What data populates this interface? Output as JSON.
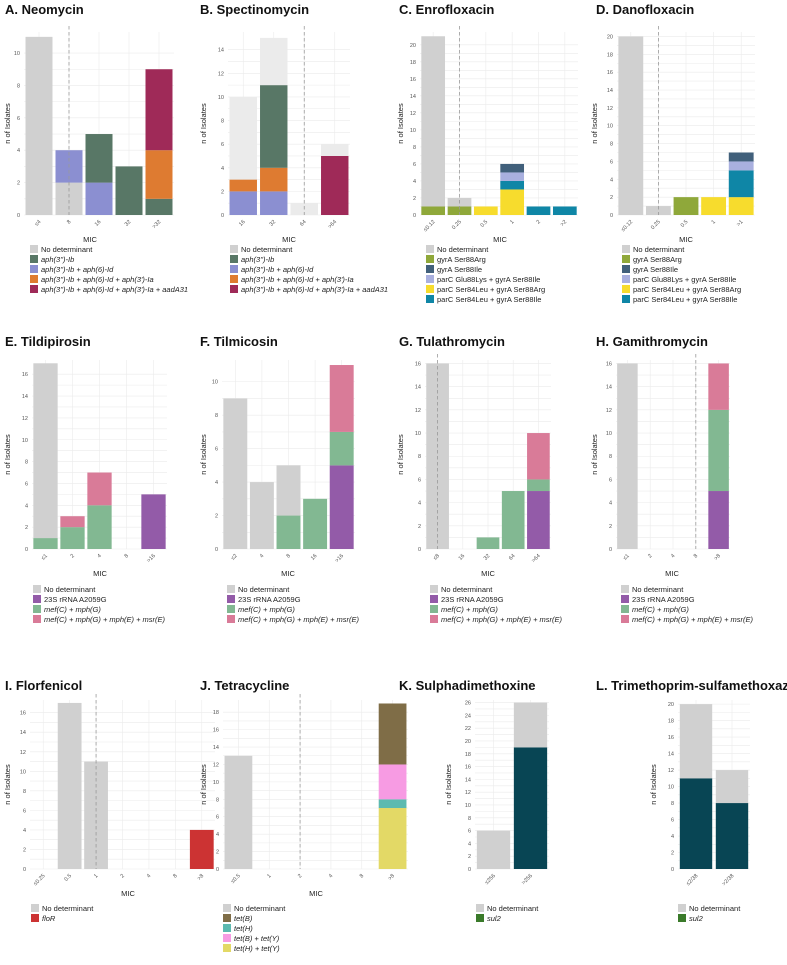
{
  "legend_sets": {
    "aph": [
      {
        "label": "No determinant",
        "color": "#d0d0d0",
        "italic": false
      },
      {
        "label": "aph(3'')-Ib",
        "color": "#587766",
        "italic": true
      },
      {
        "label": "aph(3'')-Ib + aph(6)-Id",
        "color": "#8b8fd1",
        "italic": true
      },
      {
        "label": "aph(3'')-Ib + aph(6)-Id + aph(3')-Ia",
        "color": "#de7b31",
        "italic": true
      },
      {
        "label": "aph(3'')-Ib + aph(6)-Id + aph(3')-Ia + aadA31",
        "color": "#9f2a58",
        "italic": true
      }
    ],
    "fq": [
      {
        "label": "No determinant",
        "color": "#d0d0d0",
        "italic": false
      },
      {
        "label": "gyrA Ser88Arg",
        "color": "#8fa83a",
        "italic": false
      },
      {
        "label": "gyrA Ser88Ile",
        "color": "#41607b",
        "italic": false
      },
      {
        "label": "parC Glu88Lys + gyrA Ser88Ile",
        "color": "#a9b0df",
        "italic": false
      },
      {
        "label": "parC Ser84Leu + gyrA Ser88Arg",
        "color": "#f7dc2d",
        "italic": false
      },
      {
        "label": "parC Ser84Leu + gyrA Ser88Ile",
        "color": "#0f86a6",
        "italic": false
      }
    ],
    "mac": [
      {
        "label": "No determinant",
        "color": "#d0d0d0",
        "italic": false
      },
      {
        "label": "23S rRNA A2059G",
        "color": "#935ba8",
        "italic": false
      },
      {
        "label": "mef(C) + mph(G)",
        "color": "#82b892",
        "italic": true
      },
      {
        "label": "mef(C) + mph(G) + mph(E) + msr(E)",
        "color": "#d97b98",
        "italic": true
      }
    ],
    "flo": [
      {
        "label": "No determinant",
        "color": "#d0d0d0",
        "italic": false
      },
      {
        "label": "floR",
        "color": "#cc3333",
        "italic": true
      }
    ],
    "tet": [
      {
        "label": "No determinant",
        "color": "#d0d0d0",
        "italic": false
      },
      {
        "label": "tet(B)",
        "color": "#7f6d47",
        "italic": true
      },
      {
        "label": "tet(H)",
        "color": "#5cbab0",
        "italic": true
      },
      {
        "label": "tet(B) + tet(Y)",
        "color": "#f79be3",
        "italic": true
      },
      {
        "label": "tet(H) + tet(Y)",
        "color": "#e3d966",
        "italic": true
      }
    ],
    "sul": [
      {
        "label": "No determinant",
        "color": "#d0d0d0",
        "italic": false
      },
      {
        "label": "sul2",
        "color": "#3a7a2a",
        "italic": true
      }
    ]
  },
  "chart_data": [
    {
      "type": "bar",
      "title": "A. Neomycin",
      "xlabel": "MIC",
      "ylabel": "n of Isolates",
      "ylim": [
        0,
        11.3
      ],
      "yticks": [
        0,
        2,
        4,
        6,
        8,
        10
      ],
      "categories": [
        "≤4",
        "8",
        "16",
        "32",
        ">32"
      ],
      "breakpoint": 1.5,
      "legend": "aph",
      "series": [
        {
          "name": "No determinant",
          "color": "#d0d0d0",
          "values": [
            11,
            2,
            0,
            0,
            0
          ]
        },
        {
          "name": "aph(3'')-Ib + aph(6)-Id",
          "color": "#8b8fd1",
          "values": [
            0,
            2,
            2,
            0,
            0
          ]
        },
        {
          "name": "aph(3'')-Ib",
          "color": "#587766",
          "values": [
            0,
            0,
            3,
            3,
            1
          ]
        },
        {
          "name": "aph(3'')-Ib + aph(6)-Id + aph(3')-Ia",
          "color": "#de7b31",
          "values": [
            0,
            0,
            0,
            0,
            3
          ]
        },
        {
          "name": "aph(3'')-Ib + aph(6)-Id + aph(3')-Ia + aadA31",
          "color": "#9f2a58",
          "values": [
            0,
            0,
            0,
            0,
            5
          ]
        }
      ]
    },
    {
      "type": "bar",
      "title": "B. Spectinomycin",
      "xlabel": "MIC",
      "ylabel": "n of Isolates",
      "ylim": [
        0,
        15.5
      ],
      "yticks": [
        0,
        2,
        4,
        6,
        8,
        10,
        12,
        14
      ],
      "categories": [
        "16",
        "32",
        "64",
        ">64"
      ],
      "breakpoint": 2.5,
      "legend": "aph",
      "series": [
        {
          "name": "aph(3'')-Ib + aph(6)-Id",
          "color": "#8b8fd1",
          "values": [
            2,
            2,
            0,
            0
          ]
        },
        {
          "name": "aph(3'')-Ib + aph(6)-Id + aph(3')-Ia",
          "color": "#de7b31",
          "values": [
            1,
            2,
            0,
            0
          ]
        },
        {
          "name": "aph(3'')-Ib",
          "color": "#587766",
          "values": [
            0,
            7,
            0,
            0
          ]
        },
        {
          "name": "aph(3'')-Ib + aph(6)-Id + aph(3')-Ia + aadA31",
          "color": "#9f2a58",
          "values": [
            0,
            0,
            0,
            5
          ]
        },
        {
          "name": "No determinant",
          "color": "#ebebeb",
          "values": [
            7,
            4,
            1,
            1
          ]
        }
      ]
    },
    {
      "type": "bar",
      "title": "C. Enrofloxacin",
      "xlabel": "MIC",
      "ylabel": "n of Isolates",
      "ylim": [
        0,
        21.5
      ],
      "yticks": [
        0,
        2,
        4,
        6,
        8,
        10,
        12,
        14,
        16,
        18,
        20
      ],
      "categories": [
        "≤0.12",
        "0.25",
        "0.5",
        "1",
        "2",
        ">2"
      ],
      "breakpoint": 1.5,
      "legend": "fq",
      "series": [
        {
          "name": "gyrA Ser88Arg",
          "color": "#8fa83a",
          "values": [
            1,
            1,
            0,
            0,
            0,
            0
          ]
        },
        {
          "name": "parC Ser84Leu + gyrA Ser88Arg",
          "color": "#f7dc2d",
          "values": [
            0,
            0,
            1,
            3,
            0,
            0
          ]
        },
        {
          "name": "parC Ser84Leu + gyrA Ser88Ile",
          "color": "#0f86a6",
          "values": [
            0,
            0,
            0,
            1,
            1,
            1
          ]
        },
        {
          "name": "parC Glu88Lys + gyrA Ser88Ile",
          "color": "#a9b0df",
          "values": [
            0,
            0,
            0,
            1,
            0,
            0
          ]
        },
        {
          "name": "gyrA Ser88Ile",
          "color": "#41607b",
          "values": [
            0,
            0,
            0,
            1,
            0,
            0
          ]
        },
        {
          "name": "No determinant",
          "color": "#d0d0d0",
          "values": [
            20,
            1,
            0,
            0,
            0,
            0
          ]
        }
      ]
    },
    {
      "type": "bar",
      "title": "D. Danofloxacin",
      "xlabel": "MIC",
      "ylabel": "n of Isolates",
      "ylim": [
        0,
        20.5
      ],
      "yticks": [
        0,
        2,
        4,
        6,
        8,
        10,
        12,
        14,
        16,
        18,
        20
      ],
      "categories": [
        "≤0.12",
        "0.25",
        "0.5",
        "1",
        ">1"
      ],
      "breakpoint": 1.5,
      "legend": "fq",
      "series": [
        {
          "name": "gyrA Ser88Arg",
          "color": "#8fa83a",
          "values": [
            0,
            0,
            2,
            0,
            0
          ]
        },
        {
          "name": "parC Ser84Leu + gyrA Ser88Arg",
          "color": "#f7dc2d",
          "values": [
            0,
            0,
            0,
            2,
            2
          ]
        },
        {
          "name": "parC Ser84Leu + gyrA Ser88Ile",
          "color": "#0f86a6",
          "values": [
            0,
            0,
            0,
            0,
            3
          ]
        },
        {
          "name": "parC Glu88Lys + gyrA Ser88Ile",
          "color": "#a9b0df",
          "values": [
            0,
            0,
            0,
            0,
            1
          ]
        },
        {
          "name": "gyrA Ser88Ile",
          "color": "#41607b",
          "values": [
            0,
            0,
            0,
            0,
            1
          ]
        },
        {
          "name": "No determinant",
          "color": "#d0d0d0",
          "values": [
            20,
            1,
            0,
            0,
            0
          ]
        }
      ]
    },
    {
      "type": "bar",
      "title": "E. Tildipirosin",
      "xlabel": "MIC",
      "ylabel": "n of Isolates",
      "ylim": [
        0,
        17.3
      ],
      "yticks": [
        0,
        2,
        4,
        6,
        8,
        10,
        12,
        14,
        16
      ],
      "categories": [
        "≤1",
        "2",
        "4",
        "8",
        ">16"
      ],
      "breakpoint": null,
      "legend": "mac",
      "series": [
        {
          "name": "mef(C) + mph(G)",
          "color": "#82b892",
          "values": [
            1,
            2,
            4,
            0,
            0
          ]
        },
        {
          "name": "mef(C) + mph(G) + mph(E) + msr(E)",
          "color": "#d97b98",
          "values": [
            0,
            1,
            3,
            0,
            0
          ]
        },
        {
          "name": "23S rRNA A2059G",
          "color": "#935ba8",
          "values": [
            0,
            0,
            0,
            0,
            5
          ]
        },
        {
          "name": "No determinant",
          "color": "#d0d0d0",
          "values": [
            16,
            0,
            0,
            0,
            0
          ]
        }
      ]
    },
    {
      "type": "bar",
      "title": "F. Tilmicosin",
      "xlabel": "MIC",
      "ylabel": "n of Isolates",
      "ylim": [
        0,
        11.3
      ],
      "yticks": [
        0,
        2,
        4,
        6,
        8,
        10
      ],
      "categories": [
        "≤2",
        "4",
        "8",
        "16",
        ">16"
      ],
      "breakpoint": null,
      "legend": "mac",
      "series": [
        {
          "name": "23S rRNA A2059G",
          "color": "#935ba8",
          "values": [
            0,
            0,
            0,
            0,
            5
          ]
        },
        {
          "name": "mef(C) + mph(G)",
          "color": "#82b892",
          "values": [
            0,
            0,
            2,
            3,
            2
          ]
        },
        {
          "name": "mef(C) + mph(G) + mph(E) + msr(E)",
          "color": "#d97b98",
          "values": [
            0,
            0,
            0,
            0,
            4
          ]
        },
        {
          "name": "No determinant",
          "color": "#d0d0d0",
          "values": [
            9,
            4,
            3,
            0,
            0
          ]
        }
      ]
    },
    {
      "type": "bar",
      "title": "G. Tulathromycin",
      "xlabel": "MIC",
      "ylabel": "n of Isolates",
      "ylim": [
        0,
        16.3
      ],
      "yticks": [
        0,
        2,
        4,
        6,
        8,
        10,
        12,
        14,
        16
      ],
      "categories": [
        "≤8",
        "16",
        "32",
        "64",
        ">64"
      ],
      "breakpoint": 0.5,
      "legend": "mac",
      "series": [
        {
          "name": "23S rRNA A2059G",
          "color": "#935ba8",
          "values": [
            0,
            0,
            0,
            0,
            5
          ]
        },
        {
          "name": "mef(C) + mph(G)",
          "color": "#82b892",
          "values": [
            0,
            0,
            1,
            5,
            1
          ]
        },
        {
          "name": "mef(C) + mph(G) + mph(E) + msr(E)",
          "color": "#d97b98",
          "values": [
            0,
            0,
            0,
            0,
            4
          ]
        },
        {
          "name": "No determinant",
          "color": "#d0d0d0",
          "values": [
            16,
            0,
            0,
            0,
            0
          ]
        }
      ]
    },
    {
      "type": "bar",
      "title": "H. Gamithromycin",
      "xlabel": "MIC",
      "ylabel": "n of Isolates",
      "ylim": [
        0,
        16.3
      ],
      "yticks": [
        0,
        2,
        4,
        6,
        8,
        10,
        12,
        14,
        16
      ],
      "categories": [
        "≤1",
        "2",
        "4",
        "8",
        ">8"
      ],
      "breakpoint": 3.5,
      "legend": "mac",
      "series": [
        {
          "name": "23S rRNA A2059G",
          "color": "#935ba8",
          "values": [
            0,
            0,
            0,
            0,
            5
          ]
        },
        {
          "name": "mef(C) + mph(G)",
          "color": "#82b892",
          "values": [
            0,
            0,
            0,
            0,
            7
          ]
        },
        {
          "name": "mef(C) + mph(G) + mph(E) + msr(E)",
          "color": "#d97b98",
          "values": [
            0,
            0,
            0,
            0,
            4
          ]
        },
        {
          "name": "No determinant",
          "color": "#d0d0d0",
          "values": [
            16,
            0,
            0,
            0,
            0
          ]
        }
      ]
    },
    {
      "type": "bar",
      "title": "I. Florfenicol",
      "xlabel": "MIC",
      "ylabel": "n of Isolates",
      "ylim": [
        0,
        17.3
      ],
      "yticks": [
        0,
        2,
        4,
        6,
        8,
        10,
        12,
        14,
        16
      ],
      "categories": [
        "≤0.25",
        "0.5",
        "1",
        "2",
        "4",
        "8",
        ">8"
      ],
      "breakpoint": 2.5,
      "legend": "flo",
      "series": [
        {
          "name": "floR",
          "color": "#cc3333",
          "values": [
            0,
            0,
            0,
            0,
            0,
            0,
            4
          ]
        },
        {
          "name": "No determinant",
          "color": "#d0d0d0",
          "values": [
            0,
            17,
            11,
            0,
            0,
            0,
            0
          ]
        }
      ]
    },
    {
      "type": "bar",
      "title": "J. Tetracycline",
      "xlabel": "MIC",
      "ylabel": "n of Isolates",
      "ylim": [
        0,
        19.4
      ],
      "yticks": [
        0,
        2,
        4,
        6,
        8,
        10,
        12,
        14,
        16,
        18
      ],
      "categories": [
        "≤0.5",
        "1",
        "2",
        "4",
        "8",
        ">8"
      ],
      "breakpoint": 2.5,
      "legend": "tet",
      "series": [
        {
          "name": "tet(H) + tet(Y)",
          "color": "#e3d966",
          "values": [
            0,
            0,
            0,
            0,
            0,
            7
          ]
        },
        {
          "name": "tet(H)",
          "color": "#5cbab0",
          "values": [
            0,
            0,
            0,
            0,
            0,
            1
          ]
        },
        {
          "name": "tet(B) + tet(Y)",
          "color": "#f79be3",
          "values": [
            0,
            0,
            0,
            0,
            0,
            4
          ]
        },
        {
          "name": "tet(B)",
          "color": "#7f6d47",
          "values": [
            0,
            0,
            0,
            0,
            0,
            7
          ]
        },
        {
          "name": "No determinant",
          "color": "#d0d0d0",
          "values": [
            13,
            0,
            0,
            0,
            0,
            0
          ]
        }
      ]
    },
    {
      "type": "bar",
      "title": "K. Sulphadimethoxine",
      "xlabel": "",
      "ylabel": "n of Isolates",
      "ylim": [
        0,
        26.4
      ],
      "yticks": [
        0,
        2,
        4,
        6,
        8,
        10,
        12,
        14,
        16,
        18,
        20,
        22,
        24,
        26
      ],
      "categories": [
        "≤256",
        ">256"
      ],
      "breakpoint": null,
      "legend": "sul",
      "series": [
        {
          "name": "sul2",
          "color": "#084554",
          "values": [
            0,
            19
          ]
        },
        {
          "name": "No determinant",
          "color": "#d0d0d0",
          "values": [
            6,
            7
          ]
        }
      ]
    },
    {
      "type": "bar",
      "title": "L. Trimethoprim-sulfamethoxazole",
      "xlabel": "",
      "ylabel": "n of Isolates",
      "ylim": [
        0,
        20.5
      ],
      "yticks": [
        0,
        2,
        4,
        6,
        8,
        10,
        12,
        14,
        16,
        18,
        20
      ],
      "categories": [
        "≤2/38",
        ">2/38"
      ],
      "breakpoint": null,
      "legend": "sul",
      "series": [
        {
          "name": "sul2",
          "color": "#084554",
          "values": [
            11,
            8
          ]
        },
        {
          "name": "No determinant",
          "color": "#d0d0d0",
          "values": [
            9,
            4
          ]
        }
      ]
    }
  ]
}
